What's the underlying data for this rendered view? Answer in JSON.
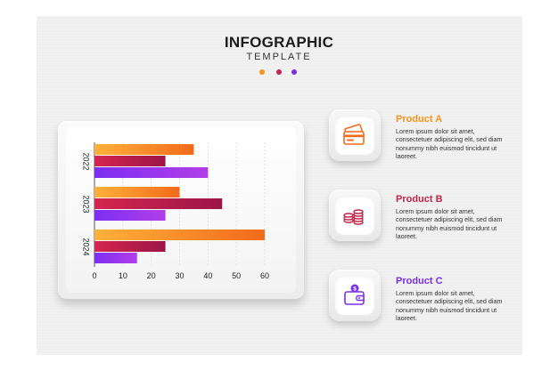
{
  "header": {
    "title": "INFOGRAPHIC",
    "subtitle": "TEMPLATE",
    "dot_colors": [
      "#f7931e",
      "#c0264a",
      "#7b2ee8"
    ]
  },
  "chart_data": {
    "type": "bar",
    "orientation": "horizontal",
    "categories": [
      "2022",
      "2023",
      "2024"
    ],
    "series": [
      {
        "values": [
          35,
          30,
          60
        ],
        "color_from": "#ffb13b",
        "color_to": "#f26a1b"
      },
      {
        "values": [
          25,
          45,
          25
        ],
        "color_from": "#d4254e",
        "color_to": "#9c1648"
      },
      {
        "values": [
          40,
          25,
          15
        ],
        "color_from": "#7b2ff2",
        "color_to": "#b23ee8"
      }
    ],
    "xlim": [
      0,
      60
    ],
    "xticks": [
      "0",
      "10",
      "20",
      "30",
      "40",
      "50",
      "60"
    ],
    "grid": true
  },
  "products": [
    {
      "title": "Product A",
      "color": "#f7931e",
      "icon": "credit-card-icon",
      "description": "Lorem ipsum dolor sit amet, consectetuer adipiscing elit, sed diam nonummy nibh euismod tincidunt ut laoreet."
    },
    {
      "title": "Product B",
      "color": "#c0264a",
      "icon": "coin-stack-icon",
      "description": "Lorem ipsum dolor sit amet, consectetuer adipiscing elit, sed diam nonummy nibh euismod tincidunt ut laoreet."
    },
    {
      "title": "Product C",
      "color": "#7b2ee8",
      "icon": "wallet-icon",
      "description": "Lorem ipsum dolor sit amet, consectetuer adipiscing elit, sed diam nonummy nibh euismod tincidunt ut laoreet."
    }
  ]
}
